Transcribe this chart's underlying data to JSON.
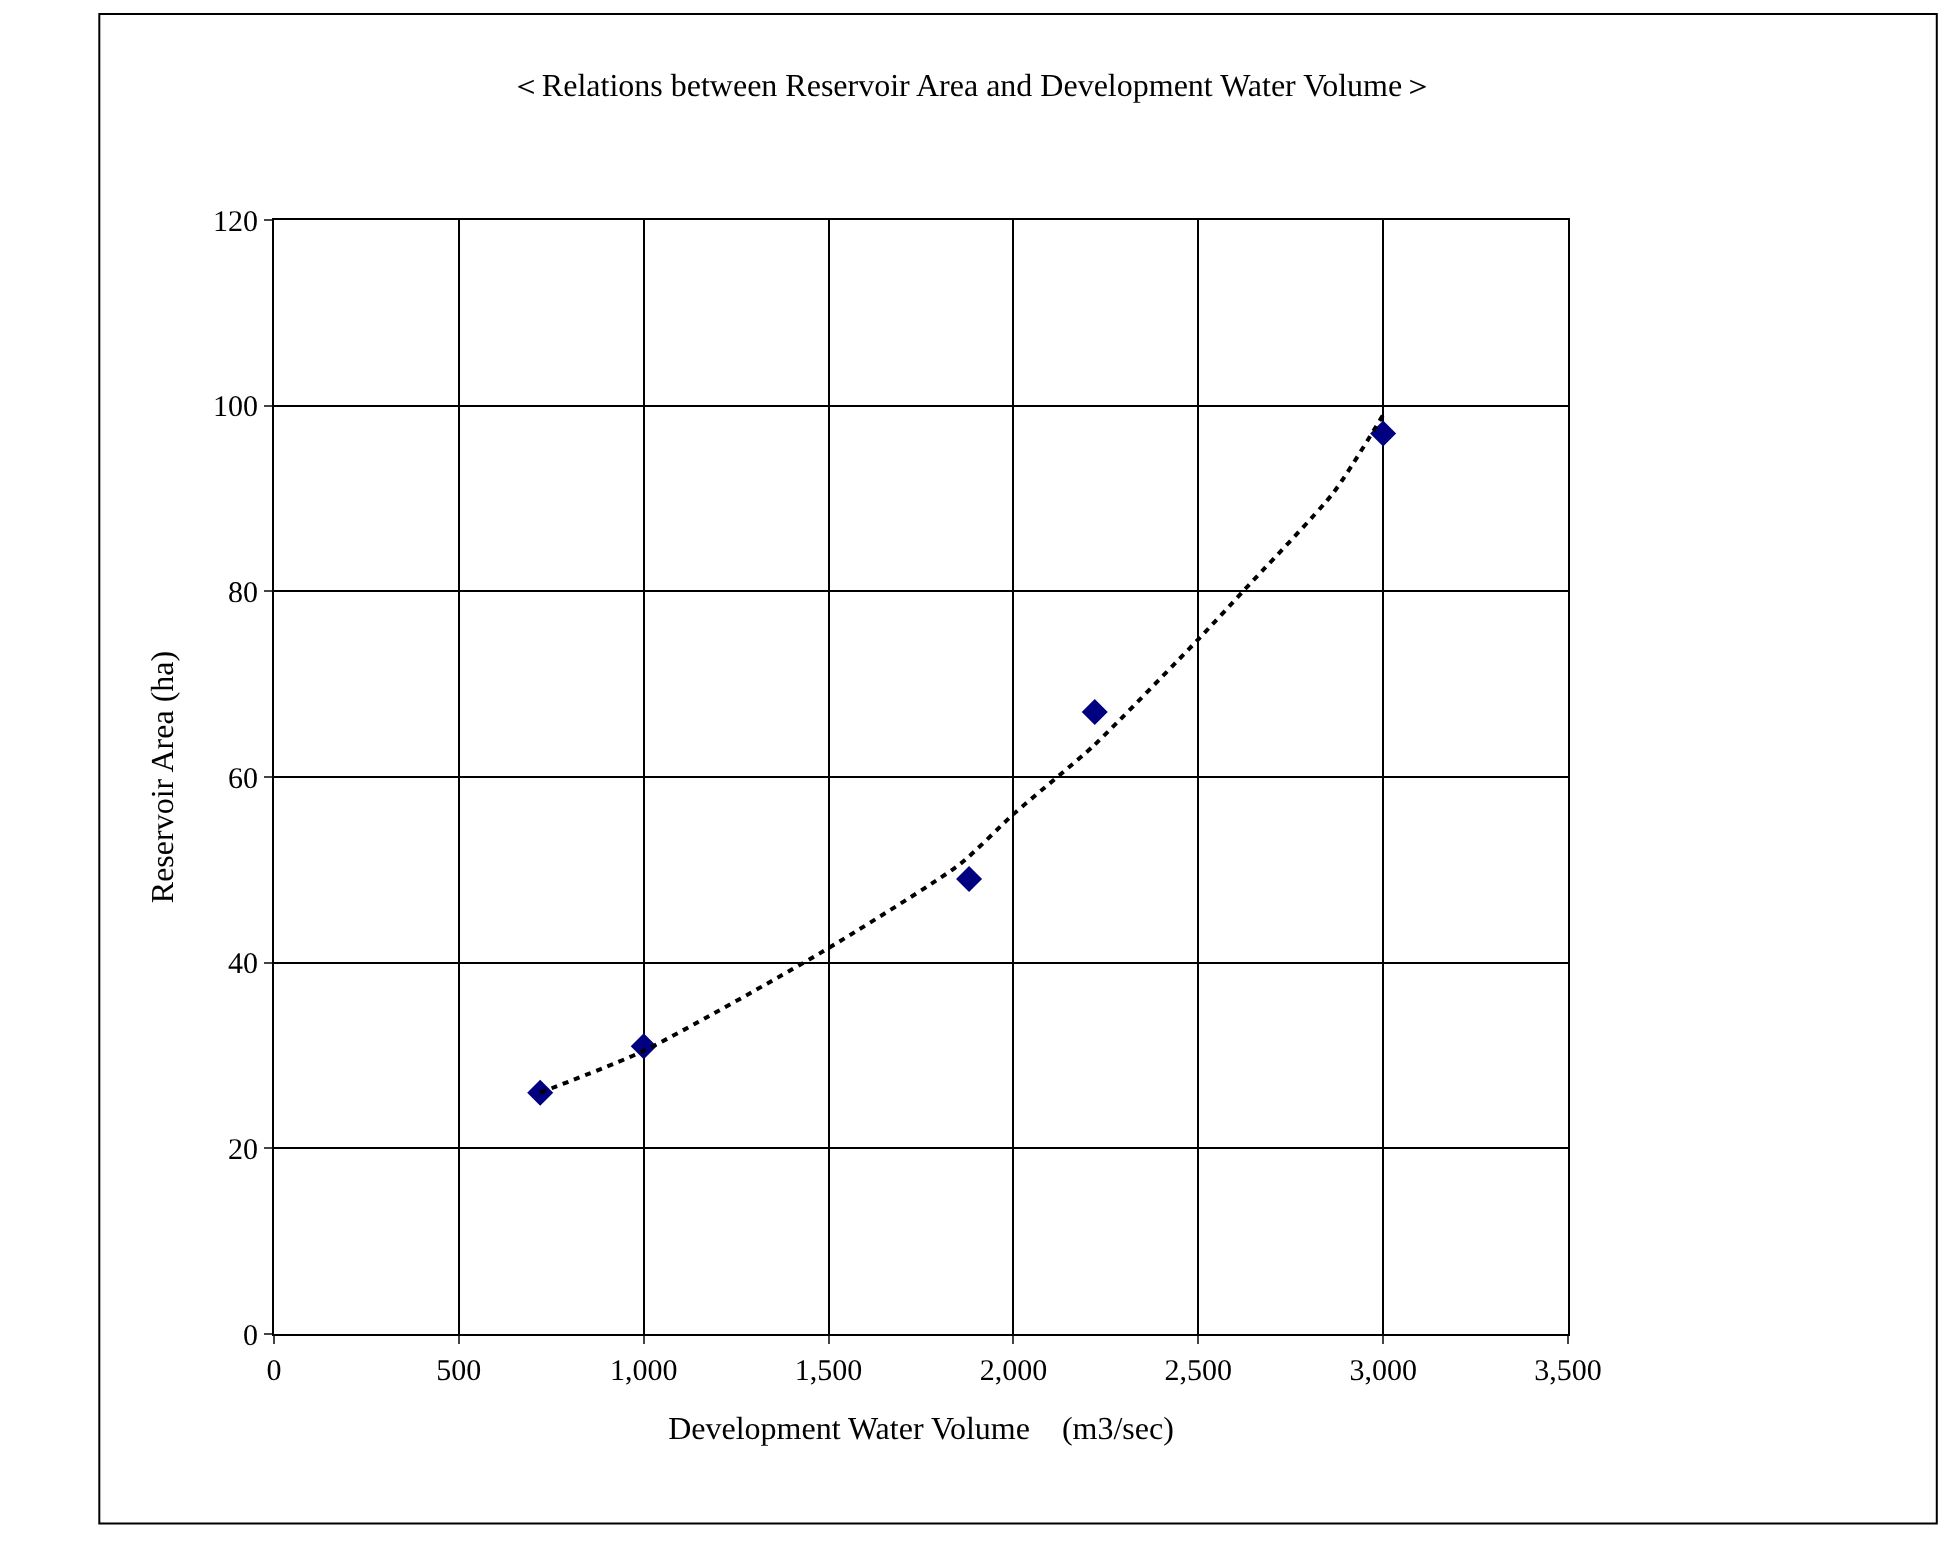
{
  "chart_data": {
    "type": "scatter",
    "title": "＜Relations between Reservoir Area and Development Water Volume＞",
    "xlabel": "Development Water Volume　(m3/sec)",
    "ylabel": "Reservoir Area (ha)",
    "x": [
      720,
      1000,
      1880,
      2220,
      3000
    ],
    "series": [
      {
        "color": "#000080",
        "marker": "diamond",
        "values": [
          26,
          31,
          49,
          67,
          97
        ]
      },
      {
        "type": "line",
        "color": "#000000",
        "line_style": "dotted",
        "marker": "none",
        "x": [
          720,
          1000,
          1476,
          1855,
          2000,
          2215,
          2504,
          2621,
          2865,
          3000
        ],
        "values": [
          26,
          30.5,
          41,
          50.6,
          56,
          63.3,
          75,
          80,
          90.6,
          99
        ]
      }
    ],
    "xlim": [
      0,
      3500
    ],
    "xticks": [
      0,
      {
        "value": 500,
        "label": "500"
      },
      {
        "value": 1000,
        "label": "1,000"
      },
      {
        "value": 1500,
        "label": "1,500"
      },
      {
        "value": 2000,
        "label": "2,000"
      },
      {
        "value": 2500,
        "label": "2,500"
      },
      {
        "value": 3000,
        "label": "3,000"
      },
      {
        "value": 3500,
        "label": "3,500"
      }
    ],
    "ylim": [
      0,
      120
    ],
    "yticks": [
      0,
      20,
      40,
      60,
      80,
      100,
      120
    ],
    "grid": true
  }
}
